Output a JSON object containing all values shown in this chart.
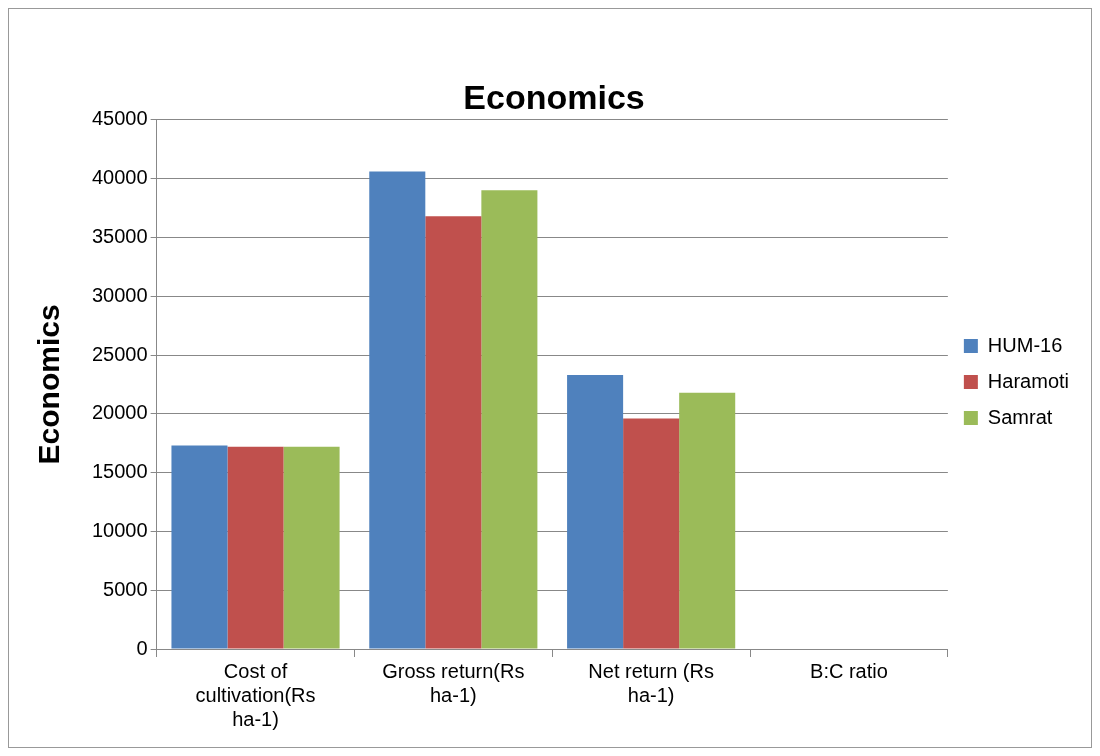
{
  "chart_data": {
    "type": "bar",
    "title": "Economics",
    "ylabel": "Economics",
    "categories": [
      "Cost of cultivation(Rs ha-1)",
      "Gross return(Rs ha-1)",
      "Net return (Rs ha-1)",
      "B:C ratio"
    ],
    "series": [
      {
        "name": "HUM-16",
        "color": "#4f81bd",
        "values": [
          17300,
          40600,
          23300,
          null
        ]
      },
      {
        "name": "Haramoti",
        "color": "#c0504d",
        "values": [
          17200,
          36800,
          19600,
          null
        ]
      },
      {
        "name": "Samrat",
        "color": "#9bbb59",
        "values": [
          17200,
          39000,
          21800,
          null
        ]
      }
    ],
    "ylim": [
      0,
      45000
    ],
    "yticks": [
      0,
      5000,
      10000,
      15000,
      20000,
      25000,
      30000,
      35000,
      40000,
      45000
    ],
    "grid": "y",
    "legend": "right"
  }
}
